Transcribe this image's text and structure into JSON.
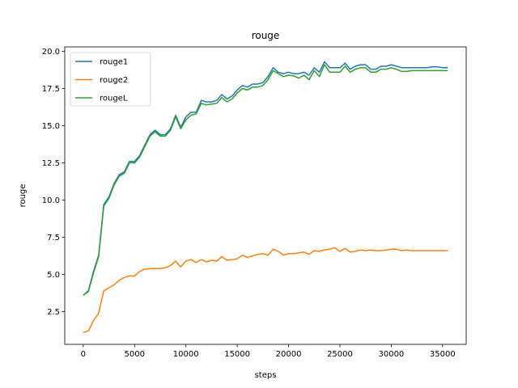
{
  "chart_data": {
    "type": "line",
    "title": "rouge",
    "xlabel": "steps",
    "ylabel": "rouge",
    "xlim": [
      -1800,
      37300
    ],
    "ylim": [
      0.3,
      20.3
    ],
    "xticks": [
      0,
      5000,
      10000,
      15000,
      20000,
      25000,
      30000,
      35000
    ],
    "yticks": [
      2.5,
      5.0,
      7.5,
      10.0,
      12.5,
      15.0,
      17.5,
      20.0
    ],
    "xtick_labels": [
      "0",
      "5000",
      "10000",
      "15000",
      "20000",
      "25000",
      "30000",
      "35000"
    ],
    "ytick_labels": [
      "2.5",
      "5.0",
      "7.5",
      "10.0",
      "12.5",
      "15.0",
      "17.5",
      "20.0"
    ],
    "grid": false,
    "legend_position": "upper-left",
    "x": [
      0,
      500,
      1000,
      1500,
      2000,
      2500,
      3000,
      3500,
      4000,
      4500,
      5000,
      5500,
      6000,
      6500,
      7000,
      7500,
      8000,
      8500,
      9000,
      9500,
      10000,
      10500,
      11000,
      11500,
      12000,
      12500,
      13000,
      13500,
      14000,
      14500,
      15000,
      15500,
      16000,
      16500,
      17000,
      17500,
      18000,
      18500,
      19000,
      19500,
      20000,
      20500,
      21000,
      21500,
      22000,
      22500,
      23000,
      23500,
      24000,
      24500,
      25000,
      25500,
      26000,
      26500,
      27000,
      27500,
      28000,
      28500,
      29000,
      29500,
      30000,
      30500,
      31000,
      31500,
      32000,
      32500,
      33000,
      33500,
      34000,
      34500,
      35000,
      35500
    ],
    "series": [
      {
        "name": "rouge1",
        "color": "#1f77b4",
        "values": [
          3.6,
          3.9,
          5.2,
          6.3,
          9.7,
          10.2,
          11.1,
          11.7,
          11.9,
          12.6,
          12.6,
          13.0,
          13.7,
          14.4,
          14.7,
          14.4,
          14.4,
          14.8,
          15.7,
          14.9,
          15.6,
          15.9,
          15.9,
          16.7,
          16.6,
          16.6,
          16.7,
          17.1,
          16.8,
          17.0,
          17.4,
          17.7,
          17.6,
          17.8,
          17.8,
          17.9,
          18.3,
          18.9,
          18.6,
          18.5,
          18.6,
          18.5,
          18.5,
          18.6,
          18.4,
          18.9,
          18.6,
          19.3,
          18.9,
          18.9,
          18.9,
          19.2,
          18.8,
          19.0,
          19.1,
          19.1,
          18.8,
          18.8,
          19.0,
          19.0,
          19.1,
          19.0,
          18.9,
          18.9,
          18.9,
          18.9,
          18.9,
          18.9,
          18.95,
          18.95,
          18.9,
          18.9
        ]
      },
      {
        "name": "rouge2",
        "color": "#ff7f0e",
        "values": [
          1.1,
          1.2,
          1.9,
          2.4,
          3.9,
          4.1,
          4.3,
          4.6,
          4.8,
          4.9,
          4.9,
          5.2,
          5.35,
          5.4,
          5.4,
          5.4,
          5.45,
          5.6,
          5.9,
          5.5,
          5.9,
          6.0,
          5.8,
          6.0,
          5.85,
          5.95,
          5.9,
          6.2,
          5.95,
          6.0,
          6.05,
          6.3,
          6.15,
          6.25,
          6.35,
          6.4,
          6.3,
          6.7,
          6.55,
          6.3,
          6.4,
          6.4,
          6.45,
          6.5,
          6.35,
          6.6,
          6.55,
          6.65,
          6.7,
          6.8,
          6.55,
          6.75,
          6.5,
          6.55,
          6.65,
          6.6,
          6.65,
          6.6,
          6.6,
          6.65,
          6.7,
          6.7,
          6.6,
          6.65,
          6.6,
          6.6,
          6.6,
          6.6,
          6.6,
          6.6,
          6.6,
          6.6
        ]
      },
      {
        "name": "rougeL",
        "color": "#2ca02c",
        "values": [
          3.6,
          3.85,
          5.1,
          6.2,
          9.6,
          10.1,
          11.0,
          11.6,
          11.8,
          12.5,
          12.5,
          12.9,
          13.6,
          14.3,
          14.6,
          14.3,
          14.3,
          14.7,
          15.6,
          14.8,
          15.4,
          15.7,
          15.8,
          16.5,
          16.4,
          16.45,
          16.5,
          16.9,
          16.6,
          16.8,
          17.2,
          17.5,
          17.4,
          17.6,
          17.6,
          17.7,
          18.1,
          18.7,
          18.5,
          18.3,
          18.4,
          18.35,
          18.2,
          18.4,
          18.1,
          18.7,
          18.3,
          19.1,
          18.6,
          18.6,
          18.6,
          19.0,
          18.6,
          18.8,
          18.9,
          18.9,
          18.6,
          18.6,
          18.8,
          18.8,
          18.9,
          18.8,
          18.65,
          18.65,
          18.7,
          18.7,
          18.7,
          18.7,
          18.7,
          18.7,
          18.7,
          18.7
        ]
      }
    ]
  }
}
